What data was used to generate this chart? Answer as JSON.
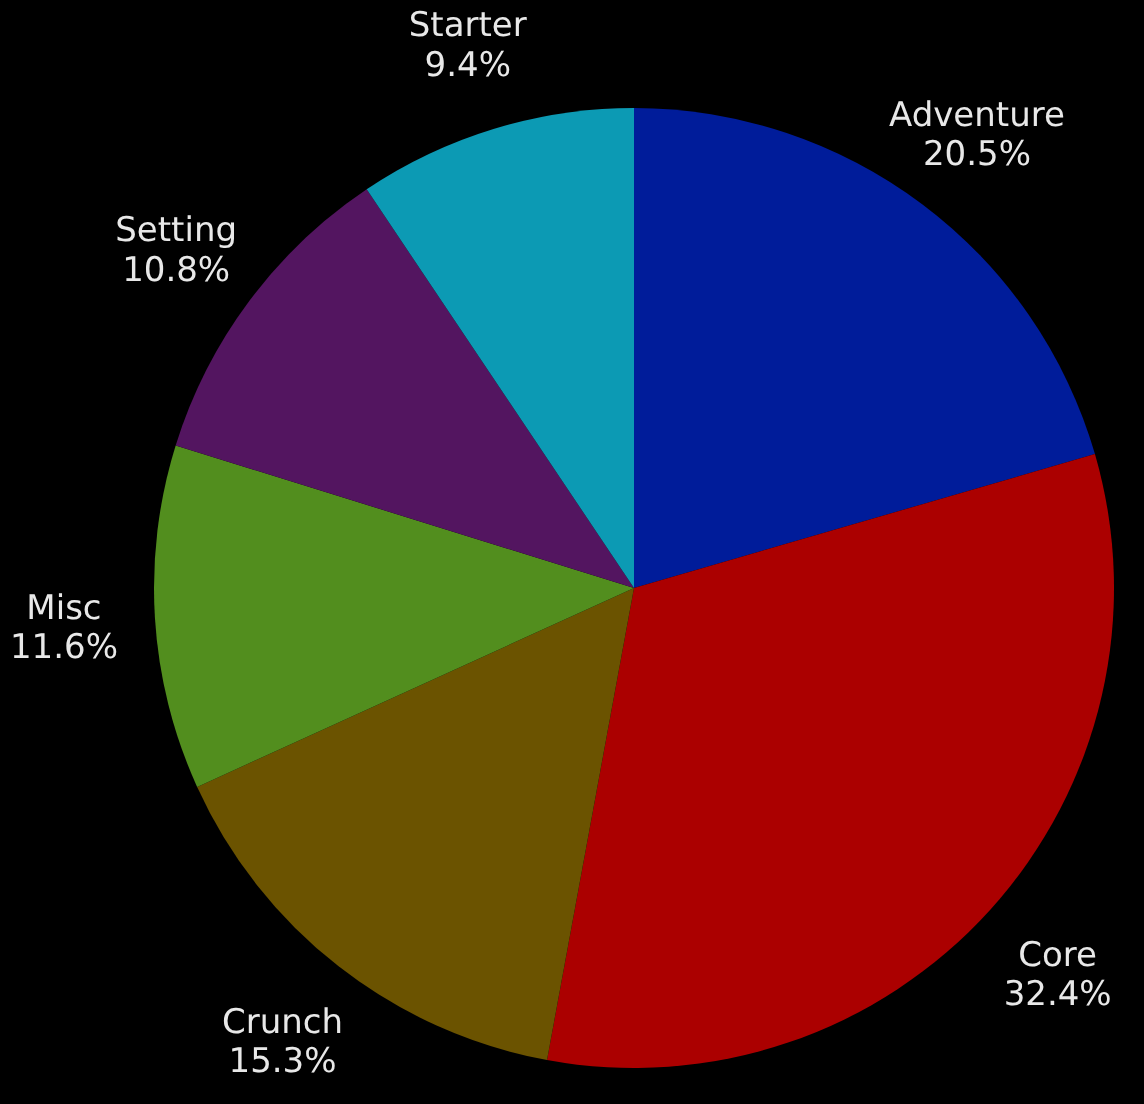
{
  "chart_data": {
    "type": "pie",
    "categories": [
      "Adventure",
      "Core",
      "Crunch",
      "Misc",
      "Setting",
      "Starter"
    ],
    "values": [
      20.5,
      32.4,
      15.3,
      11.6,
      10.8,
      9.4
    ],
    "value_labels": [
      "20.5%",
      "32.4%",
      "15.3%",
      "11.6%",
      "10.8%",
      "9.4%"
    ],
    "colors": [
      "#001c9a",
      "#ab0000",
      "#6b5300",
      "#528e1e",
      "#531560",
      "#0c9ab4"
    ]
  }
}
